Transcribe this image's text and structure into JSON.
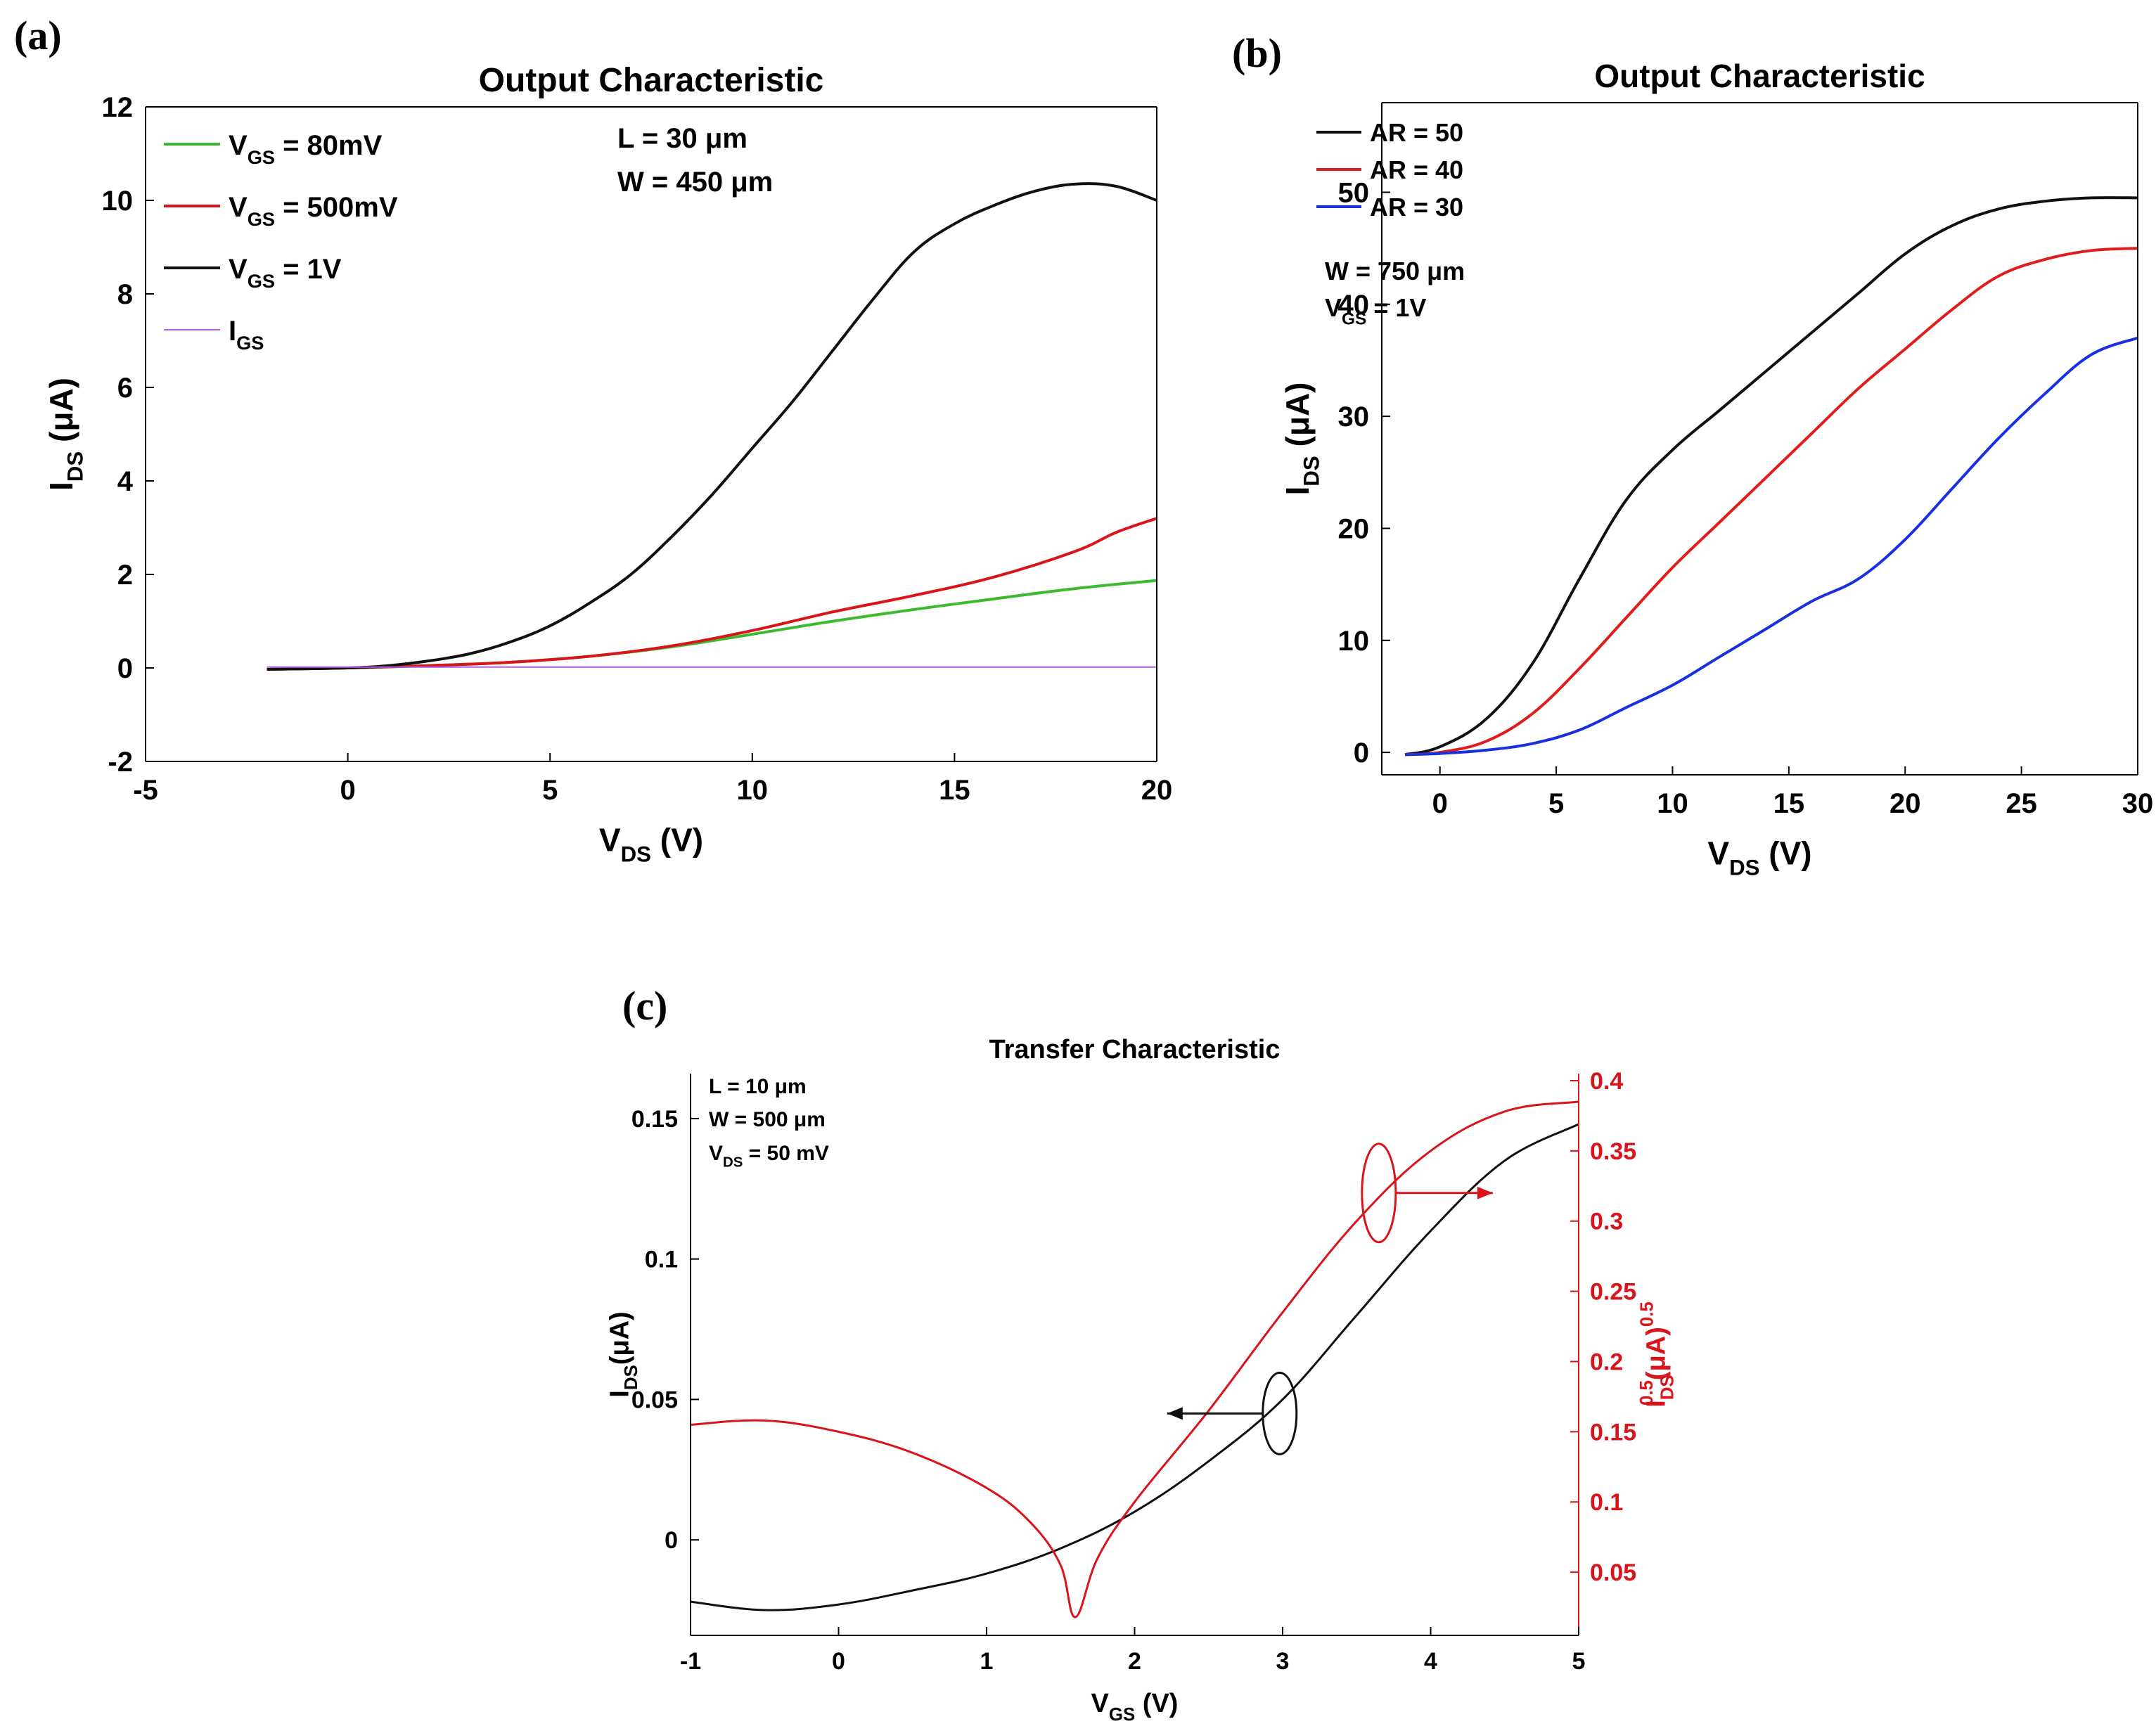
{
  "chart_data": [
    {
      "panel": "(a)",
      "type": "line",
      "title": "Output Characteristic",
      "xlabel": {
        "main": "V",
        "sub": "DS",
        "rest": " (V)"
      },
      "ylabel": {
        "main": "I",
        "sub": "DS",
        "rest": " (μA)"
      },
      "xlim": [
        -5,
        20
      ],
      "ylim": [
        -2,
        12
      ],
      "xticks": [
        -5,
        0,
        5,
        10,
        15,
        20
      ],
      "yticks": [
        -2,
        0,
        2,
        4,
        6,
        8,
        10,
        12
      ],
      "legend_position": "top-left",
      "annotations": [
        "L = 30 μm",
        "W = 450 μm"
      ],
      "series": [
        {
          "name": "V_GS = 80mV",
          "label": {
            "main": "V",
            "sub": "GS",
            "rest": " = 80mV"
          },
          "color": "#3dbb2f",
          "width": 4,
          "x": [
            -2,
            0,
            2,
            4,
            6,
            8,
            10,
            12,
            14,
            16,
            18,
            20
          ],
          "y": [
            -0.03,
            0.0,
            0.05,
            0.12,
            0.25,
            0.45,
            0.72,
            1.0,
            1.25,
            1.48,
            1.7,
            1.87
          ]
        },
        {
          "name": "V_GS = 500mV",
          "label": {
            "main": "V",
            "sub": "GS",
            "rest": " = 500mV"
          },
          "color": "#d9141b",
          "width": 4,
          "x": [
            -2,
            0,
            2,
            4,
            6,
            8,
            10,
            12,
            14,
            16,
            18,
            19,
            20
          ],
          "y": [
            -0.03,
            0.0,
            0.05,
            0.12,
            0.25,
            0.47,
            0.8,
            1.2,
            1.55,
            1.95,
            2.5,
            2.9,
            3.2
          ]
        },
        {
          "name": "V_GS = 1V",
          "label": {
            "main": "V",
            "sub": "GS",
            "rest": " = 1V"
          },
          "color": "#111111",
          "width": 4,
          "x": [
            -2,
            0,
            1,
            2,
            3,
            4,
            5,
            6,
            7,
            8,
            9,
            10,
            11,
            12,
            13,
            14,
            15,
            16,
            17,
            18,
            19,
            20
          ],
          "y": [
            -0.03,
            0.0,
            0.05,
            0.15,
            0.3,
            0.55,
            0.9,
            1.4,
            2.0,
            2.8,
            3.7,
            4.7,
            5.7,
            6.8,
            7.9,
            8.9,
            9.5,
            9.9,
            10.2,
            10.35,
            10.3,
            10.0
          ]
        },
        {
          "name": "I_GS",
          "label": {
            "main": "I",
            "sub": "GS",
            "rest": ""
          },
          "color": "#b05ce0",
          "width": 2,
          "x": [
            -2,
            20
          ],
          "y": [
            0.02,
            0.02
          ]
        }
      ]
    },
    {
      "panel": "(b)",
      "type": "line",
      "title": "Output Characteristic",
      "xlabel": {
        "main": "V",
        "sub": "DS",
        "rest": " (V)"
      },
      "ylabel": {
        "main": "I",
        "sub": "DS",
        "rest": " (μA)"
      },
      "xlim": [
        -2.5,
        30
      ],
      "ylim": [
        -2,
        58
      ],
      "xticks": [
        0,
        5,
        10,
        15,
        20,
        25,
        30
      ],
      "yticks": [
        0,
        10,
        20,
        30,
        40,
        50
      ],
      "legend_position": "top-left",
      "annotations": [
        {
          "main": "W = 750 μm"
        },
        {
          "main": "V",
          "sub": "GS",
          "rest": " = 1V"
        }
      ],
      "series": [
        {
          "name": "AR = 50",
          "color": "#111111",
          "width": 4,
          "x": [
            -1.5,
            0,
            2,
            4,
            6,
            8,
            10,
            12,
            14,
            16,
            18,
            20,
            22,
            24,
            26,
            28,
            30
          ],
          "y": [
            -0.2,
            0.5,
            3.0,
            8.0,
            15.5,
            22.5,
            27.0,
            30.5,
            34.0,
            37.5,
            41.0,
            44.5,
            47.0,
            48.5,
            49.2,
            49.5,
            49.5
          ]
        },
        {
          "name": "AR = 40",
          "color": "#e01c1c",
          "width": 4,
          "x": [
            -1.5,
            0,
            2,
            4,
            6,
            8,
            10,
            12,
            14,
            16,
            18,
            20,
            22,
            24,
            26,
            28,
            30
          ],
          "y": [
            -0.2,
            0.0,
            1.0,
            3.5,
            7.5,
            12.0,
            16.5,
            20.5,
            24.5,
            28.5,
            32.5,
            36.0,
            39.5,
            42.5,
            44.0,
            44.8,
            45.0
          ]
        },
        {
          "name": "AR = 30",
          "color": "#1830e0",
          "width": 4,
          "x": [
            -1.5,
            0,
            2,
            4,
            6,
            8,
            10,
            12,
            14,
            16,
            18,
            20,
            22,
            24,
            26,
            28,
            30
          ],
          "y": [
            -0.2,
            -0.1,
            0.2,
            0.8,
            2.0,
            4.0,
            6.0,
            8.5,
            11.0,
            13.5,
            15.5,
            19.0,
            23.5,
            28.0,
            32.0,
            35.5,
            37.0
          ]
        }
      ]
    },
    {
      "panel": "(c)",
      "type": "line",
      "title": "Transfer Characteristic",
      "xlabel": {
        "main": "V",
        "sub": "GS",
        "rest": " (V)"
      },
      "ylabel": {
        "main": "I",
        "sub": "DS",
        "rest": "(μA)"
      },
      "y2label": {
        "main": "I",
        "sub": "DS",
        "sup": "0.5",
        "rest": "(μA)",
        "sup2": "0.5"
      },
      "xlim": [
        -1,
        5
      ],
      "ylim": [
        -0.034,
        0.166
      ],
      "y2lim": [
        0.005,
        0.405
      ],
      "xticks": [
        -1,
        0,
        1,
        2,
        3,
        4,
        5
      ],
      "yticks": [
        0,
        0.05,
        0.1,
        0.15
      ],
      "y2ticks": [
        0.05,
        0.1,
        0.15,
        0.2,
        0.25,
        0.3,
        0.35,
        0.4
      ],
      "annotations": [
        {
          "main": "L = 10 μm"
        },
        {
          "main": "W = 500 μm"
        },
        {
          "main": "V",
          "sub": "DS",
          "rest": " = 50 mV"
        }
      ],
      "series": [
        {
          "name": "I_DS",
          "axis": "left",
          "color": "#111111",
          "width": 3,
          "x": [
            -1,
            -0.5,
            0,
            0.5,
            1,
            1.5,
            2,
            2.5,
            3,
            3.5,
            4,
            4.5,
            5
          ],
          "y": [
            -0.022,
            -0.025,
            -0.023,
            -0.018,
            -0.012,
            -0.003,
            0.01,
            0.028,
            0.05,
            0.08,
            0.11,
            0.135,
            0.148
          ]
        },
        {
          "name": "I_DS^0.5",
          "axis": "right",
          "color": "#d9141b",
          "width": 3,
          "x": [
            -1,
            -0.5,
            0,
            0.5,
            1,
            1.3,
            1.5,
            1.6,
            1.75,
            2,
            2.5,
            3,
            3.5,
            4,
            4.5,
            5
          ],
          "y": [
            0.155,
            0.158,
            0.15,
            0.135,
            0.11,
            0.085,
            0.055,
            0.018,
            0.06,
            0.1,
            0.165,
            0.235,
            0.3,
            0.35,
            0.378,
            0.385
          ]
        }
      ]
    }
  ],
  "panel_labels": {
    "a": "(a)",
    "b": "(b)",
    "c": "(c)"
  },
  "colors": {
    "axis": "#000000",
    "c_right_axis": "#d9141b"
  }
}
